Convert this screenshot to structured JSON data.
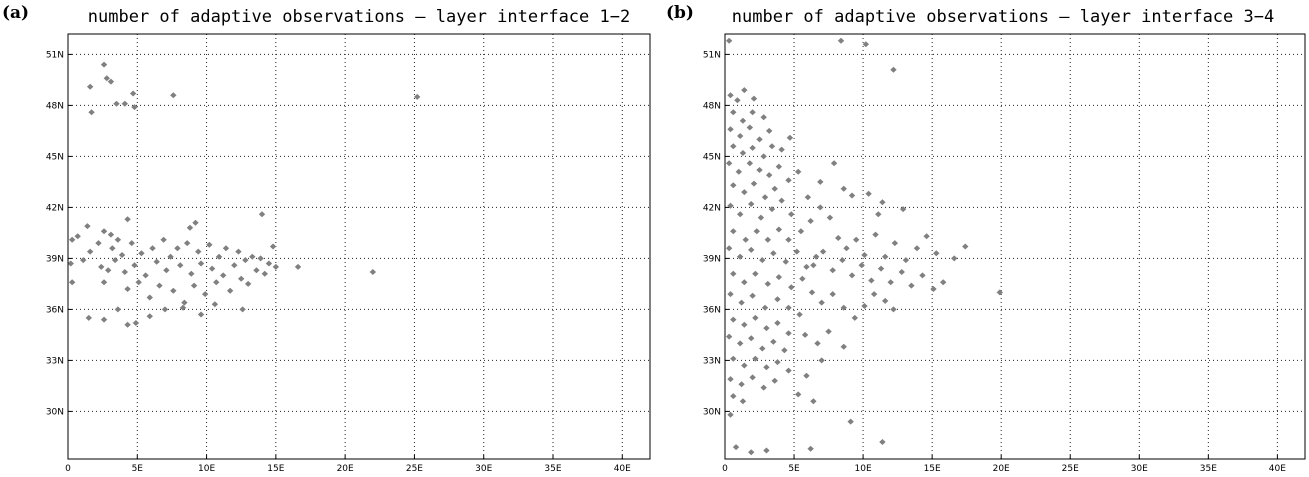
{
  "chart_data": [
    {
      "type": "scatter",
      "panel_label": "(a)",
      "title": "number of adaptive observations – layer interface 1−2",
      "x_ticks": [
        "0",
        "5E",
        "10E",
        "15E",
        "20E",
        "25E",
        "30E",
        "35E",
        "40E"
      ],
      "y_ticks": [
        "30N",
        "33N",
        "36N",
        "39N",
        "42N",
        "45N",
        "48N",
        "51N"
      ],
      "xlim": [
        0,
        42
      ],
      "ylim": [
        27.2,
        52.2
      ],
      "grid": true,
      "series": [
        {
          "marker_color": "#808080",
          "points": [
            [
              1.6,
              49.1
            ],
            [
              2.8,
              49.6
            ],
            [
              2.6,
              50.4
            ],
            [
              3.1,
              49.4
            ],
            [
              1.7,
              47.6
            ],
            [
              3.5,
              48.1
            ],
            [
              4.1,
              48.1
            ],
            [
              4.7,
              48.7
            ],
            [
              4.8,
              47.9
            ],
            [
              7.6,
              48.6
            ],
            [
              25.2,
              48.5
            ],
            [
              0.3,
              40.1
            ],
            [
              0.7,
              40.3
            ],
            [
              1.4,
              40.9
            ],
            [
              2.6,
              40.6
            ],
            [
              3.1,
              40.4
            ],
            [
              4.3,
              41.3
            ],
            [
              8.8,
              40.8
            ],
            [
              9.2,
              41.1
            ],
            [
              14.0,
              41.6
            ],
            [
              0.2,
              38.7
            ],
            [
              0.3,
              37.6
            ],
            [
              1.1,
              38.9
            ],
            [
              1.6,
              39.4
            ],
            [
              2.2,
              39.9
            ],
            [
              2.4,
              38.5
            ],
            [
              2.6,
              37.6
            ],
            [
              2.9,
              38.3
            ],
            [
              3.2,
              39.6
            ],
            [
              3.4,
              38.9
            ],
            [
              3.6,
              40.1
            ],
            [
              3.9,
              39.2
            ],
            [
              4.1,
              38.2
            ],
            [
              4.3,
              37.2
            ],
            [
              4.6,
              39.9
            ],
            [
              4.8,
              38.6
            ],
            [
              5.1,
              37.6
            ],
            [
              5.3,
              39.3
            ],
            [
              5.6,
              38.0
            ],
            [
              5.9,
              36.7
            ],
            [
              6.1,
              39.6
            ],
            [
              6.4,
              38.8
            ],
            [
              6.6,
              37.4
            ],
            [
              6.9,
              40.1
            ],
            [
              7.1,
              38.3
            ],
            [
              7.4,
              39.1
            ],
            [
              7.6,
              37.1
            ],
            [
              7.9,
              39.6
            ],
            [
              8.1,
              38.6
            ],
            [
              8.4,
              36.4
            ],
            [
              8.6,
              39.9
            ],
            [
              8.9,
              38.1
            ],
            [
              9.1,
              37.4
            ],
            [
              9.4,
              39.4
            ],
            [
              9.6,
              38.7
            ],
            [
              9.9,
              36.9
            ],
            [
              10.2,
              39.8
            ],
            [
              10.4,
              38.4
            ],
            [
              10.7,
              37.6
            ],
            [
              10.9,
              39.1
            ],
            [
              11.2,
              38.0
            ],
            [
              11.4,
              39.6
            ],
            [
              11.7,
              37.1
            ],
            [
              12.0,
              38.6
            ],
            [
              12.3,
              39.4
            ],
            [
              12.5,
              37.8
            ],
            [
              12.8,
              38.9
            ],
            [
              13.0,
              37.5
            ],
            [
              13.3,
              39.1
            ],
            [
              13.6,
              38.3
            ],
            [
              13.9,
              39.0
            ],
            [
              14.2,
              38.1
            ],
            [
              14.5,
              38.7
            ],
            [
              14.8,
              39.7
            ],
            [
              15.0,
              38.5
            ],
            [
              16.6,
              38.5
            ],
            [
              22.0,
              38.2
            ],
            [
              1.5,
              35.5
            ],
            [
              2.6,
              35.4
            ],
            [
              3.6,
              36.0
            ],
            [
              4.3,
              35.1
            ],
            [
              4.9,
              35.2
            ],
            [
              5.9,
              35.6
            ],
            [
              7.0,
              36.0
            ],
            [
              8.3,
              36.1
            ],
            [
              9.6,
              35.7
            ],
            [
              10.6,
              36.3
            ],
            [
              12.6,
              36.0
            ]
          ]
        }
      ]
    },
    {
      "type": "scatter",
      "panel_label": "(b)",
      "title": "number of adaptive observations – layer interface 3−4",
      "x_ticks": [
        "0",
        "5E",
        "10E",
        "15E",
        "20E",
        "25E",
        "30E",
        "35E",
        "40E"
      ],
      "y_ticks": [
        "30N",
        "33N",
        "36N",
        "39N",
        "42N",
        "45N",
        "48N",
        "51N"
      ],
      "xlim": [
        0,
        42
      ],
      "ylim": [
        27.2,
        52.2
      ],
      "grid": true,
      "series": [
        {
          "marker_color": "#808080",
          "points": [
            [
              0.3,
              51.8
            ],
            [
              8.4,
              51.8
            ],
            [
              10.2,
              51.6
            ],
            [
              12.2,
              50.1
            ],
            [
              0.4,
              48.6
            ],
            [
              0.9,
              48.3
            ],
            [
              1.4,
              48.9
            ],
            [
              2.1,
              48.4
            ],
            [
              0.6,
              47.6
            ],
            [
              1.3,
              47.1
            ],
            [
              2.0,
              47.6
            ],
            [
              2.8,
              47.3
            ],
            [
              0.4,
              46.6
            ],
            [
              1.1,
              46.2
            ],
            [
              1.8,
              46.7
            ],
            [
              2.5,
              46.0
            ],
            [
              3.2,
              46.5
            ],
            [
              0.6,
              45.6
            ],
            [
              1.3,
              45.2
            ],
            [
              2.0,
              45.5
            ],
            [
              2.8,
              45.0
            ],
            [
              3.4,
              45.6
            ],
            [
              4.1,
              45.4
            ],
            [
              4.7,
              46.1
            ],
            [
              0.3,
              44.6
            ],
            [
              1.0,
              44.1
            ],
            [
              1.8,
              44.6
            ],
            [
              2.5,
              44.2
            ],
            [
              3.2,
              43.9
            ],
            [
              3.9,
              44.4
            ],
            [
              4.6,
              43.6
            ],
            [
              5.3,
              44.1
            ],
            [
              0.6,
              43.3
            ],
            [
              1.4,
              42.9
            ],
            [
              2.1,
              43.4
            ],
            [
              2.9,
              42.6
            ],
            [
              3.6,
              43.1
            ],
            [
              0.4,
              42.1
            ],
            [
              1.1,
              41.6
            ],
            [
              1.9,
              42.2
            ],
            [
              2.6,
              41.4
            ],
            [
              3.4,
              41.9
            ],
            [
              4.1,
              42.4
            ],
            [
              4.8,
              41.6
            ],
            [
              0.6,
              40.6
            ],
            [
              1.5,
              40.1
            ],
            [
              2.3,
              40.6
            ],
            [
              3.1,
              40.1
            ],
            [
              3.9,
              40.7
            ],
            [
              4.6,
              40.1
            ],
            [
              0.3,
              39.6
            ],
            [
              1.1,
              39.1
            ],
            [
              1.9,
              39.5
            ],
            [
              2.7,
              38.9
            ],
            [
              3.5,
              39.3
            ],
            [
              4.4,
              38.8
            ],
            [
              5.2,
              39.4
            ],
            [
              5.9,
              38.5
            ],
            [
              6.6,
              39.1
            ],
            [
              0.6,
              38.1
            ],
            [
              1.4,
              37.6
            ],
            [
              2.2,
              38.1
            ],
            [
              3.1,
              37.5
            ],
            [
              3.9,
              37.9
            ],
            [
              4.8,
              37.3
            ],
            [
              5.6,
              37.8
            ],
            [
              0.4,
              36.9
            ],
            [
              1.2,
              36.4
            ],
            [
              2.0,
              36.8
            ],
            [
              2.9,
              36.1
            ],
            [
              3.8,
              36.6
            ],
            [
              4.6,
              36.1
            ],
            [
              5.4,
              35.7
            ],
            [
              0.6,
              35.4
            ],
            [
              1.4,
              35.1
            ],
            [
              2.2,
              35.5
            ],
            [
              3.0,
              34.9
            ],
            [
              3.8,
              35.2
            ],
            [
              4.6,
              34.6
            ],
            [
              0.3,
              34.4
            ],
            [
              1.1,
              34.0
            ],
            [
              1.9,
              34.3
            ],
            [
              2.7,
              33.7
            ],
            [
              3.5,
              34.1
            ],
            [
              4.3,
              33.6
            ],
            [
              0.6,
              33.1
            ],
            [
              1.4,
              32.7
            ],
            [
              2.2,
              33.1
            ],
            [
              3.0,
              32.6
            ],
            [
              3.8,
              32.9
            ],
            [
              4.6,
              32.4
            ],
            [
              0.4,
              31.9
            ],
            [
              1.2,
              31.6
            ],
            [
              2.0,
              32.0
            ],
            [
              2.8,
              31.4
            ],
            [
              3.6,
              31.8
            ],
            [
              0.6,
              30.9
            ],
            [
              1.3,
              30.6
            ],
            [
              0.4,
              29.8
            ],
            [
              0.8,
              27.9
            ],
            [
              1.9,
              27.6
            ],
            [
              3.0,
              27.7
            ],
            [
              6.2,
              27.8
            ],
            [
              9.1,
              29.4
            ],
            [
              11.4,
              28.2
            ],
            [
              5.5,
              40.6
            ],
            [
              6.2,
              41.2
            ],
            [
              6.9,
              42.0
            ],
            [
              7.6,
              41.4
            ],
            [
              8.2,
              40.2
            ],
            [
              8.8,
              39.6
            ],
            [
              9.5,
              40.1
            ],
            [
              10.1,
              39.2
            ],
            [
              10.9,
              40.4
            ],
            [
              11.6,
              39.1
            ],
            [
              12.3,
              39.9
            ],
            [
              13.1,
              38.9
            ],
            [
              13.9,
              39.6
            ],
            [
              14.6,
              40.3
            ],
            [
              15.3,
              39.3
            ],
            [
              6.4,
              38.6
            ],
            [
              7.1,
              39.4
            ],
            [
              7.8,
              38.3
            ],
            [
              8.5,
              38.9
            ],
            [
              9.2,
              38.0
            ],
            [
              9.9,
              38.6
            ],
            [
              10.6,
              37.7
            ],
            [
              11.3,
              38.4
            ],
            [
              12.0,
              37.6
            ],
            [
              12.8,
              38.2
            ],
            [
              13.5,
              37.4
            ],
            [
              14.3,
              38.0
            ],
            [
              15.1,
              37.2
            ],
            [
              15.8,
              37.6
            ],
            [
              16.6,
              39.0
            ],
            [
              17.4,
              39.7
            ],
            [
              19.9,
              37.0
            ],
            [
              6.3,
              37.0
            ],
            [
              7.0,
              36.4
            ],
            [
              7.8,
              36.9
            ],
            [
              8.6,
              36.1
            ],
            [
              9.4,
              35.5
            ],
            [
              10.1,
              36.2
            ],
            [
              10.8,
              36.9
            ],
            [
              11.6,
              36.5
            ],
            [
              12.2,
              36.0
            ],
            [
              6.0,
              42.6
            ],
            [
              6.9,
              43.5
            ],
            [
              7.9,
              44.6
            ],
            [
              8.6,
              43.1
            ],
            [
              9.2,
              42.7
            ],
            [
              10.4,
              42.8
            ],
            [
              11.1,
              41.6
            ],
            [
              11.4,
              42.3
            ],
            [
              12.9,
              41.9
            ],
            [
              5.8,
              34.5
            ],
            [
              6.7,
              34.0
            ],
            [
              7.5,
              34.7
            ],
            [
              8.6,
              33.8
            ],
            [
              7.0,
              33.0
            ],
            [
              5.9,
              32.1
            ],
            [
              5.3,
              31.0
            ],
            [
              6.4,
              30.6
            ]
          ]
        }
      ]
    }
  ]
}
